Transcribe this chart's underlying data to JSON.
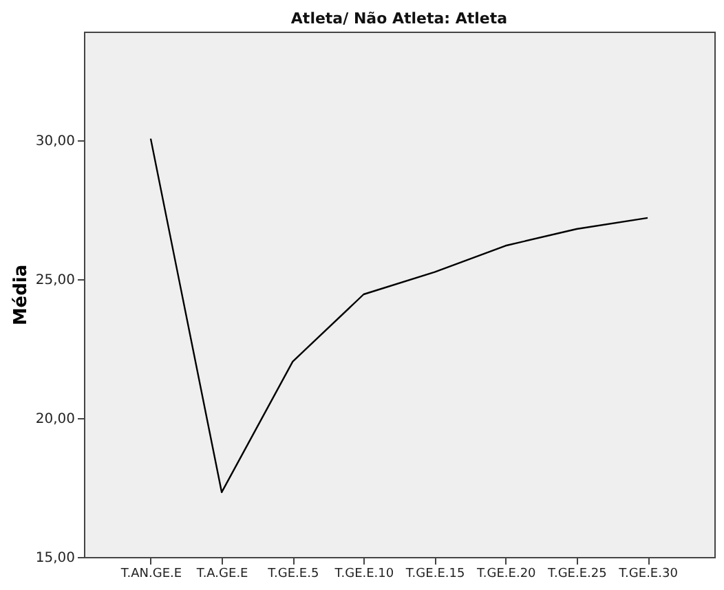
{
  "chart_data": {
    "type": "line",
    "title": "Atleta/ Não Atleta: Atleta",
    "ylabel": "Média",
    "categories": [
      "T.AN.GE.E",
      "T.A.GE.E",
      "T.GE.E.5",
      "T.GE.E.10",
      "T.GE.E.15",
      "T.GE.E.20",
      "T.GE.E.25",
      "T.GE.E.30"
    ],
    "series": [
      {
        "color": "#000000",
        "values": [
          30.05,
          17.33,
          22.03,
          24.45,
          25.25,
          26.2,
          26.8,
          27.2
        ]
      }
    ],
    "ylim": [
      15,
      33.9
    ],
    "yticks": [
      {
        "value": 15,
        "label": "15,00"
      },
      {
        "value": 20,
        "label": "20,00"
      },
      {
        "value": 25,
        "label": "25,00"
      },
      {
        "value": 30,
        "label": "30,00"
      }
    ],
    "grid": false,
    "marker": "none",
    "line_style": "solid"
  }
}
